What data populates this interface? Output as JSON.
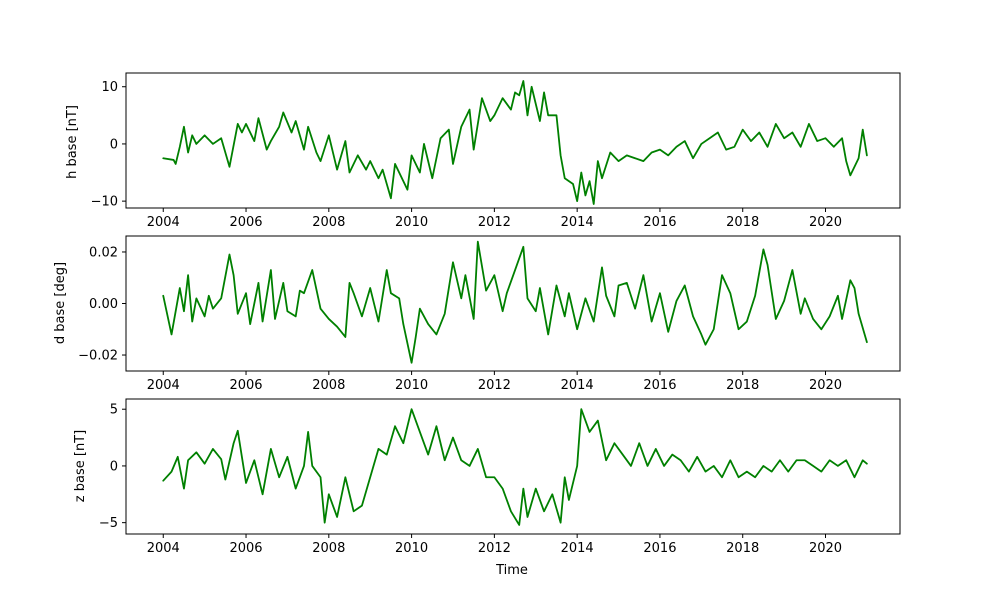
{
  "chart_data": [
    {
      "type": "line",
      "id": "h",
      "title": "",
      "xlabel": "",
      "ylabel": "h base [nT]",
      "color": "#008000",
      "xlim": [
        2003.1,
        2021.8
      ],
      "ylim": [
        -11.2,
        12.4
      ],
      "x_ticks": [
        2004,
        2006,
        2008,
        2010,
        2012,
        2014,
        2016,
        2018,
        2020
      ],
      "x_tick_labels": [
        "2004",
        "2006",
        "2008",
        "2010",
        "2012",
        "2014",
        "2016",
        "2018",
        "2020"
      ],
      "y_ticks": [
        10,
        0,
        -10
      ],
      "y_tick_labels": [
        "10",
        "0",
        "−10"
      ],
      "series": [
        {
          "x": [
            2004.0,
            2004.25,
            2004.3,
            2004.4,
            2004.5,
            2004.6,
            2004.7,
            2004.8,
            2005.0,
            2005.2,
            2005.4,
            2005.6,
            2005.8,
            2005.9,
            2006.0,
            2006.2,
            2006.3,
            2006.5,
            2006.6,
            2006.8,
            2006.9,
            2007.1,
            2007.2,
            2007.4,
            2007.5,
            2007.7,
            2007.8,
            2008.0,
            2008.2,
            2008.4,
            2008.5,
            2008.7,
            2008.9,
            2009.0,
            2009.2,
            2009.3,
            2009.5,
            2009.6,
            2009.8,
            2009.9,
            2010.0,
            2010.2,
            2010.3,
            2010.5,
            2010.7,
            2010.9,
            2011.0,
            2011.2,
            2011.4,
            2011.5,
            2011.7,
            2011.9,
            2012.0,
            2012.2,
            2012.4,
            2012.5,
            2012.6,
            2012.7,
            2012.8,
            2012.9,
            2013.0,
            2013.1,
            2013.2,
            2013.3,
            2013.5,
            2013.6,
            2013.7,
            2013.9,
            2014.0,
            2014.1,
            2014.2,
            2014.3,
            2014.4,
            2014.5,
            2014.6,
            2014.8,
            2015.0,
            2015.2,
            2015.4,
            2015.6,
            2015.8,
            2016.0,
            2016.2,
            2016.4,
            2016.6,
            2016.8,
            2017.0,
            2017.2,
            2017.4,
            2017.6,
            2017.8,
            2018.0,
            2018.2,
            2018.4,
            2018.6,
            2018.8,
            2019.0,
            2019.2,
            2019.4,
            2019.6,
            2019.8,
            2020.0,
            2020.2,
            2020.4,
            2020.5,
            2020.6,
            2020.8,
            2020.9,
            2021.0
          ],
          "y": [
            -2.5,
            -2.8,
            -3.5,
            -0.5,
            3.0,
            -1.5,
            1.5,
            0.0,
            1.5,
            0.0,
            1.0,
            -4.0,
            3.5,
            2.0,
            3.5,
            0.5,
            4.5,
            -1.0,
            0.5,
            3.0,
            5.5,
            2.0,
            4.0,
            -1.0,
            3.0,
            -1.5,
            -3.0,
            1.5,
            -4.5,
            0.5,
            -5.0,
            -2.0,
            -4.5,
            -3.0,
            -6.0,
            -4.5,
            -9.5,
            -3.5,
            -6.5,
            -8.0,
            -2.0,
            -5.0,
            0.0,
            -6.0,
            1.0,
            2.5,
            -3.5,
            3.0,
            6.0,
            -1.0,
            8.0,
            4.0,
            5.0,
            8.0,
            6.0,
            9.0,
            8.5,
            11.0,
            5.0,
            10.0,
            7.0,
            4.0,
            9.0,
            5.0,
            5.0,
            -2.0,
            -6.0,
            -7.0,
            -10.0,
            -5.0,
            -9.0,
            -6.5,
            -10.5,
            -3.0,
            -6.0,
            -1.5,
            -3.0,
            -2.0,
            -2.5,
            -3.0,
            -1.5,
            -1.0,
            -2.0,
            -0.5,
            0.5,
            -2.5,
            0.0,
            1.0,
            2.0,
            -1.0,
            -0.5,
            2.5,
            0.5,
            2.0,
            -0.5,
            3.5,
            1.0,
            2.0,
            -0.5,
            3.5,
            0.5,
            1.0,
            -0.5,
            1.0,
            -3.0,
            -5.5,
            -2.5,
            2.5,
            -2.0
          ]
        }
      ]
    },
    {
      "type": "line",
      "id": "d",
      "title": "",
      "xlabel": "",
      "ylabel": "d base [deg]",
      "color": "#008000",
      "xlim": [
        2003.1,
        2021.8
      ],
      "ylim": [
        -0.0262,
        0.0262
      ],
      "x_ticks": [
        2004,
        2006,
        2008,
        2010,
        2012,
        2014,
        2016,
        2018,
        2020
      ],
      "x_tick_labels": [
        "2004",
        "2006",
        "2008",
        "2010",
        "2012",
        "2014",
        "2016",
        "2018",
        "2020"
      ],
      "y_ticks": [
        0.02,
        0.0,
        -0.02
      ],
      "y_tick_labels": [
        "0.02",
        "0.00",
        "−0.02"
      ],
      "series": [
        {
          "x": [
            2004.0,
            2004.2,
            2004.4,
            2004.5,
            2004.6,
            2004.7,
            2004.8,
            2005.0,
            2005.1,
            2005.2,
            2005.4,
            2005.6,
            2005.7,
            2005.8,
            2006.0,
            2006.1,
            2006.3,
            2006.4,
            2006.6,
            2006.7,
            2006.9,
            2007.0,
            2007.2,
            2007.3,
            2007.4,
            2007.6,
            2007.8,
            2008.0,
            2008.2,
            2008.4,
            2008.5,
            2008.6,
            2008.8,
            2009.0,
            2009.2,
            2009.4,
            2009.5,
            2009.7,
            2009.8,
            2010.0,
            2010.1,
            2010.2,
            2010.4,
            2010.6,
            2010.8,
            2011.0,
            2011.2,
            2011.3,
            2011.5,
            2011.6,
            2011.8,
            2012.0,
            2012.2,
            2012.3,
            2012.5,
            2012.7,
            2012.8,
            2013.0,
            2013.1,
            2013.3,
            2013.5,
            2013.7,
            2013.8,
            2014.0,
            2014.2,
            2014.4,
            2014.6,
            2014.7,
            2014.9,
            2015.0,
            2015.2,
            2015.4,
            2015.6,
            2015.8,
            2016.0,
            2016.2,
            2016.4,
            2016.6,
            2016.8,
            2017.0,
            2017.1,
            2017.3,
            2017.5,
            2017.7,
            2017.9,
            2018.1,
            2018.3,
            2018.5,
            2018.6,
            2018.8,
            2019.0,
            2019.2,
            2019.4,
            2019.5,
            2019.7,
            2019.9,
            2020.1,
            2020.3,
            2020.4,
            2020.6,
            2020.7,
            2020.8,
            2021.0
          ],
          "y": [
            0.003,
            -0.012,
            0.006,
            -0.003,
            0.011,
            -0.007,
            0.002,
            -0.005,
            0.003,
            -0.002,
            0.002,
            0.019,
            0.011,
            -0.004,
            0.004,
            -0.008,
            0.008,
            -0.007,
            0.013,
            -0.006,
            0.008,
            -0.003,
            -0.005,
            0.005,
            0.004,
            0.013,
            -0.002,
            -0.006,
            -0.009,
            -0.013,
            0.008,
            0.004,
            -0.005,
            0.006,
            -0.007,
            0.013,
            0.004,
            0.002,
            -0.008,
            -0.023,
            -0.013,
            -0.002,
            -0.008,
            -0.012,
            -0.004,
            0.016,
            0.002,
            0.011,
            -0.006,
            0.024,
            0.005,
            0.011,
            -0.003,
            0.004,
            0.013,
            0.022,
            0.002,
            -0.003,
            0.006,
            -0.012,
            0.007,
            -0.005,
            0.004,
            -0.01,
            0.002,
            -0.007,
            0.014,
            0.003,
            -0.005,
            0.007,
            0.008,
            -0.002,
            0.011,
            -0.007,
            0.004,
            -0.011,
            0.001,
            0.007,
            -0.005,
            -0.012,
            -0.016,
            -0.01,
            0.011,
            0.004,
            -0.01,
            -0.007,
            0.003,
            0.021,
            0.015,
            -0.006,
            0.001,
            0.013,
            -0.004,
            0.002,
            -0.006,
            -0.01,
            -0.005,
            0.003,
            -0.006,
            0.009,
            0.006,
            -0.004,
            -0.015
          ]
        }
      ]
    },
    {
      "type": "line",
      "id": "z",
      "title": "",
      "xlabel": "Time",
      "ylabel": "z base [nT]",
      "color": "#008000",
      "xlim": [
        2003.1,
        2021.8
      ],
      "ylim": [
        -6.0,
        5.9
      ],
      "x_ticks": [
        2004,
        2006,
        2008,
        2010,
        2012,
        2014,
        2016,
        2018,
        2020
      ],
      "x_tick_labels": [
        "2004",
        "2006",
        "2008",
        "2010",
        "2012",
        "2014",
        "2016",
        "2018",
        "2020"
      ],
      "y_ticks": [
        5,
        0,
        -5
      ],
      "y_tick_labels": [
        "5",
        "0",
        "−5"
      ],
      "series": [
        {
          "x": [
            2004.0,
            2004.2,
            2004.35,
            2004.5,
            2004.6,
            2004.8,
            2005.0,
            2005.2,
            2005.4,
            2005.5,
            2005.7,
            2005.8,
            2006.0,
            2006.2,
            2006.4,
            2006.6,
            2006.8,
            2007.0,
            2007.2,
            2007.4,
            2007.5,
            2007.6,
            2007.8,
            2007.9,
            2008.0,
            2008.2,
            2008.4,
            2008.6,
            2008.8,
            2009.0,
            2009.2,
            2009.4,
            2009.6,
            2009.8,
            2010.0,
            2010.2,
            2010.4,
            2010.6,
            2010.8,
            2011.0,
            2011.2,
            2011.4,
            2011.6,
            2011.8,
            2012.0,
            2012.2,
            2012.4,
            2012.6,
            2012.7,
            2012.8,
            2013.0,
            2013.2,
            2013.4,
            2013.6,
            2013.7,
            2013.8,
            2014.0,
            2014.1,
            2014.3,
            2014.5,
            2014.7,
            2014.9,
            2015.1,
            2015.3,
            2015.5,
            2015.7,
            2015.9,
            2016.1,
            2016.3,
            2016.5,
            2016.7,
            2016.9,
            2017.1,
            2017.3,
            2017.5,
            2017.7,
            2017.9,
            2018.1,
            2018.3,
            2018.5,
            2018.7,
            2018.9,
            2019.1,
            2019.3,
            2019.5,
            2019.7,
            2019.9,
            2020.1,
            2020.3,
            2020.5,
            2020.7,
            2020.9,
            2021.0
          ],
          "y": [
            -1.3,
            -0.5,
            0.8,
            -2.0,
            0.5,
            1.2,
            0.2,
            1.5,
            0.6,
            -1.2,
            2.0,
            3.1,
            -1.5,
            0.5,
            -2.5,
            1.5,
            -1.0,
            0.8,
            -2.0,
            0.0,
            3.0,
            0.0,
            -1.0,
            -5.0,
            -2.5,
            -4.5,
            -1.0,
            -4.0,
            -3.5,
            -1.0,
            1.5,
            1.0,
            3.5,
            2.0,
            5.0,
            3.0,
            1.0,
            3.5,
            0.5,
            2.5,
            0.5,
            0.0,
            1.5,
            -1.0,
            -1.0,
            -2.0,
            -4.0,
            -5.2,
            -2.0,
            -4.5,
            -2.0,
            -4.0,
            -2.5,
            -5.0,
            -1.0,
            -3.0,
            0.0,
            5.0,
            3.0,
            4.0,
            0.5,
            2.0,
            1.0,
            0.0,
            2.0,
            0.0,
            1.5,
            0.0,
            1.0,
            0.5,
            -0.5,
            0.8,
            -0.5,
            0.0,
            -1.0,
            0.5,
            -1.0,
            -0.5,
            -1.0,
            0.0,
            -0.5,
            0.5,
            -0.5,
            0.5,
            0.5,
            0.0,
            -0.5,
            0.5,
            0.0,
            0.5,
            -1.0,
            0.5,
            0.2
          ]
        }
      ]
    }
  ]
}
